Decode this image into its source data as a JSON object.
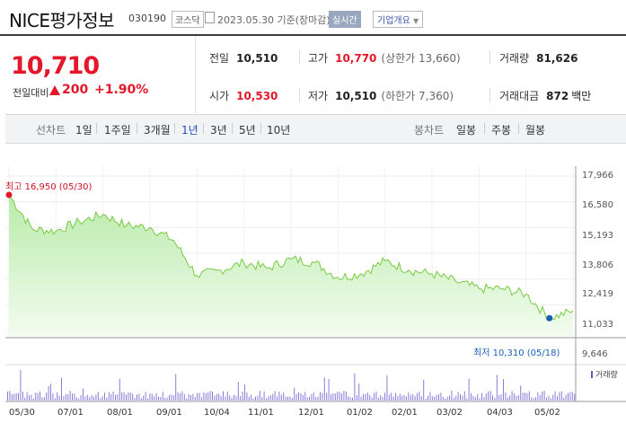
{
  "header": {
    "name": "NICE평가정보",
    "code": "030190",
    "market": "코스닥",
    "date": "2023.05.30  기준(장마감)",
    "live": "실시간",
    "overview": "기업개요"
  },
  "quote": {
    "price": "10,710",
    "change_label": "전일대비",
    "change": "200",
    "rate": "+1.90%",
    "prev_label": "전일",
    "prev": "10,510",
    "high_label": "고가",
    "high": "10,770",
    "upper_limit": "(상한가 13,660)",
    "volume_label": "거래량",
    "volume": "81,626",
    "open_label": "시가",
    "open": "10,530",
    "low_label": "저가",
    "low": "10,510",
    "lower_limit": "(하한가 7,360)",
    "amount_label": "거래대금",
    "amount": "872",
    "amount_unit": "백만"
  },
  "periods": {
    "label": "선차트",
    "items": [
      "1일",
      "1주일",
      "3개월",
      "1년",
      "3년",
      "5년",
      "10년"
    ],
    "selected": "1년",
    "candle_label": "봉차트",
    "candle_items": [
      "일봉",
      "주봉",
      "월봉"
    ]
  },
  "chart": {
    "high_label": "최고 16,950 (05/30)",
    "low_label": "최저 10,310 (05/18)",
    "volume_legend": "거래량",
    "y_ticks": [
      "17,966",
      "16,580",
      "15,193",
      "13,806",
      "12,419",
      "11,033",
      "9,646"
    ],
    "x_ticks": [
      "05/30",
      "07/01",
      "08/01",
      "09/01",
      "10/04",
      "11/01",
      "12/01",
      "01/02",
      "02/01",
      "03/02",
      "04/03",
      "05/02"
    ]
  },
  "chart_data": {
    "type": "area",
    "ylim": [
      9646,
      17966
    ],
    "x": [
      "05/30",
      "06/15",
      "07/01",
      "07/15",
      "08/01",
      "08/15",
      "09/01",
      "09/15",
      "10/04",
      "10/15",
      "11/01",
      "11/15",
      "12/01",
      "12/15",
      "01/02",
      "01/15",
      "02/01",
      "02/15",
      "03/02",
      "03/15",
      "04/03",
      "04/15",
      "05/02",
      "05/18",
      "05/30"
    ],
    "values": [
      16950,
      15100,
      15000,
      15500,
      15900,
      15300,
      15200,
      14500,
      12600,
      12900,
      13300,
      13000,
      13500,
      13300,
      12500,
      12700,
      13400,
      12900,
      12700,
      12300,
      11900,
      11900,
      11600,
      10310,
      10710
    ],
    "high": {
      "x": "05/30",
      "value": 16950
    },
    "low": {
      "x": "05/18",
      "value": 10310
    },
    "series_color": "#7ac943",
    "grid": true
  }
}
